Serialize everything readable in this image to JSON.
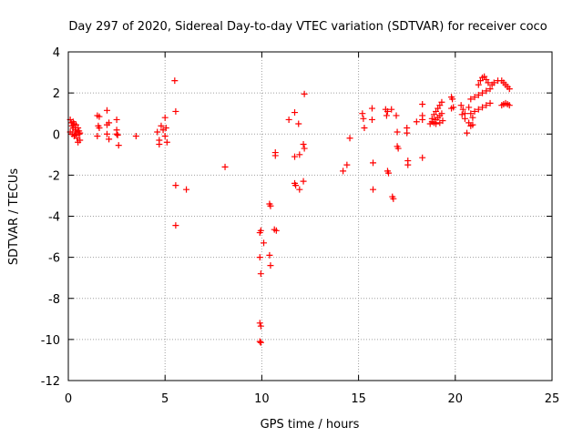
{
  "chart_data": {
    "type": "scatter",
    "title": "Day 297 of 2020, Sidereal Day-to-day VTEC variation (SDTVAR) for receiver coco",
    "xlabel": "GPS time / hours",
    "ylabel": "SDTVAR / TECUs",
    "xlim": [
      0,
      25
    ],
    "ylim": [
      -12,
      4
    ],
    "xticks": [
      0,
      5,
      10,
      15,
      20,
      25
    ],
    "yticks": [
      -12,
      -10,
      -8,
      -6,
      -4,
      -2,
      0,
      2,
      4
    ],
    "grid": true,
    "marker": "+",
    "color": "#ff0000",
    "series": [
      {
        "name": "SDTVAR",
        "points": [
          [
            0.1,
            0.7
          ],
          [
            0.15,
            0.55
          ],
          [
            0.2,
            0.4
          ],
          [
            0.25,
            0.3
          ],
          [
            0.3,
            0.5
          ],
          [
            0.35,
            0.2
          ],
          [
            0.1,
            0.1
          ],
          [
            0.2,
            0.0
          ],
          [
            0.3,
            -0.1
          ],
          [
            0.4,
            0.1
          ],
          [
            0.45,
            -0.2
          ],
          [
            0.5,
            0.3
          ],
          [
            0.55,
            0.0
          ],
          [
            0.6,
            -0.3
          ],
          [
            0.25,
            0.6
          ],
          [
            0.35,
            -0.05
          ],
          [
            0.4,
            0.45
          ],
          [
            0.5,
            -0.4
          ],
          [
            0.55,
            0.15
          ],
          [
            0.6,
            0.05
          ],
          [
            1.5,
            0.9
          ],
          [
            1.55,
            0.4
          ],
          [
            1.6,
            0.3
          ],
          [
            1.5,
            -0.1
          ],
          [
            1.6,
            0.85
          ],
          [
            2.0,
            1.15
          ],
          [
            2.1,
            0.55
          ],
          [
            2.0,
            0.0
          ],
          [
            2.1,
            -0.25
          ],
          [
            2.0,
            0.45
          ],
          [
            2.5,
            0.7
          ],
          [
            2.5,
            0.2
          ],
          [
            2.55,
            -0.05
          ],
          [
            2.6,
            -0.55
          ],
          [
            2.5,
            0.0
          ],
          [
            3.5,
            -0.1
          ],
          [
            4.6,
            0.1
          ],
          [
            4.7,
            -0.3
          ],
          [
            4.8,
            0.4
          ],
          [
            4.9,
            0.2
          ],
          [
            4.7,
            -0.5
          ],
          [
            5.0,
            0.8
          ],
          [
            5.05,
            0.3
          ],
          [
            5.1,
            -0.4
          ],
          [
            5.0,
            -0.1
          ],
          [
            5.5,
            2.6
          ],
          [
            5.55,
            1.1
          ],
          [
            5.55,
            -2.5
          ],
          [
            5.55,
            -4.45
          ],
          [
            6.1,
            -2.7
          ],
          [
            8.1,
            -1.6
          ],
          [
            9.9,
            -4.8
          ],
          [
            9.95,
            -4.7
          ],
          [
            9.9,
            -6.0
          ],
          [
            9.95,
            -6.8
          ],
          [
            9.9,
            -9.2
          ],
          [
            9.95,
            -9.35
          ],
          [
            9.9,
            -10.1
          ],
          [
            9.95,
            -10.15
          ],
          [
            10.1,
            -5.3
          ],
          [
            10.4,
            -3.4
          ],
          [
            10.45,
            -3.5
          ],
          [
            10.4,
            -5.9
          ],
          [
            10.45,
            -6.4
          ],
          [
            10.7,
            -0.9
          ],
          [
            10.7,
            -1.05
          ],
          [
            10.65,
            -4.65
          ],
          [
            10.75,
            -4.7
          ],
          [
            11.4,
            0.7
          ],
          [
            11.7,
            1.05
          ],
          [
            11.7,
            -1.1
          ],
          [
            11.7,
            -2.4
          ],
          [
            11.75,
            -2.5
          ],
          [
            11.9,
            0.5
          ],
          [
            11.95,
            -1.0
          ],
          [
            11.95,
            -2.7
          ],
          [
            12.2,
            1.95
          ],
          [
            12.15,
            -0.5
          ],
          [
            12.2,
            -0.7
          ],
          [
            12.15,
            -2.3
          ],
          [
            14.2,
            -1.8
          ],
          [
            14.4,
            -1.5
          ],
          [
            14.55,
            -0.2
          ],
          [
            15.2,
            1.0
          ],
          [
            15.25,
            0.75
          ],
          [
            15.3,
            0.3
          ],
          [
            15.7,
            1.25
          ],
          [
            15.7,
            0.7
          ],
          [
            15.75,
            -1.4
          ],
          [
            15.75,
            -2.7
          ],
          [
            16.4,
            1.2
          ],
          [
            16.5,
            1.1
          ],
          [
            16.45,
            0.9
          ],
          [
            16.5,
            -1.8
          ],
          [
            16.55,
            -1.9
          ],
          [
            16.7,
            1.2
          ],
          [
            16.75,
            -3.05
          ],
          [
            16.8,
            -3.15
          ],
          [
            16.95,
            0.9
          ],
          [
            17.0,
            0.1
          ],
          [
            17.0,
            -0.6
          ],
          [
            17.05,
            -0.7
          ],
          [
            17.5,
            0.3
          ],
          [
            17.5,
            0.05
          ],
          [
            17.55,
            -1.3
          ],
          [
            17.55,
            -1.5
          ],
          [
            18.0,
            0.6
          ],
          [
            18.3,
            1.45
          ],
          [
            18.3,
            0.9
          ],
          [
            18.3,
            0.7
          ],
          [
            18.3,
            -1.15
          ],
          [
            18.7,
            0.5
          ],
          [
            18.8,
            0.75
          ],
          [
            18.9,
            0.95
          ],
          [
            19.0,
            1.1
          ],
          [
            19.1,
            1.25
          ],
          [
            19.2,
            1.4
          ],
          [
            19.3,
            1.55
          ],
          [
            18.8,
            0.6
          ],
          [
            18.9,
            0.55
          ],
          [
            19.0,
            0.7
          ],
          [
            19.1,
            0.8
          ],
          [
            19.2,
            0.9
          ],
          [
            19.3,
            1.0
          ],
          [
            19.0,
            0.5
          ],
          [
            19.2,
            0.55
          ],
          [
            19.35,
            0.65
          ],
          [
            19.8,
            1.8
          ],
          [
            19.85,
            1.7
          ],
          [
            19.9,
            1.3
          ],
          [
            19.8,
            1.25
          ],
          [
            20.3,
            1.4
          ],
          [
            20.4,
            1.2
          ],
          [
            20.5,
            1.0
          ],
          [
            20.35,
            0.95
          ],
          [
            20.5,
            0.75
          ],
          [
            20.6,
            0.05
          ],
          [
            20.7,
            1.3
          ],
          [
            20.8,
            1.0
          ],
          [
            20.9,
            0.8
          ],
          [
            20.8,
            0.4
          ],
          [
            20.7,
            0.55
          ],
          [
            20.9,
            0.45
          ],
          [
            20.8,
            1.7
          ],
          [
            21.0,
            1.8
          ],
          [
            21.2,
            1.9
          ],
          [
            21.4,
            2.0
          ],
          [
            21.6,
            2.1
          ],
          [
            21.8,
            2.2
          ],
          [
            21.0,
            1.1
          ],
          [
            21.2,
            1.2
          ],
          [
            21.4,
            1.3
          ],
          [
            21.6,
            1.4
          ],
          [
            21.8,
            1.5
          ],
          [
            21.2,
            2.4
          ],
          [
            21.3,
            2.6
          ],
          [
            21.4,
            2.75
          ],
          [
            21.5,
            2.8
          ],
          [
            21.6,
            2.65
          ],
          [
            21.7,
            2.5
          ],
          [
            21.9,
            2.4
          ],
          [
            22.0,
            2.5
          ],
          [
            22.2,
            2.6
          ],
          [
            22.4,
            2.6
          ],
          [
            22.5,
            2.5
          ],
          [
            22.6,
            2.4
          ],
          [
            22.7,
            2.3
          ],
          [
            22.8,
            2.2
          ],
          [
            22.4,
            1.4
          ],
          [
            22.5,
            1.45
          ],
          [
            22.6,
            1.5
          ],
          [
            22.7,
            1.45
          ],
          [
            22.8,
            1.4
          ]
        ]
      }
    ]
  }
}
